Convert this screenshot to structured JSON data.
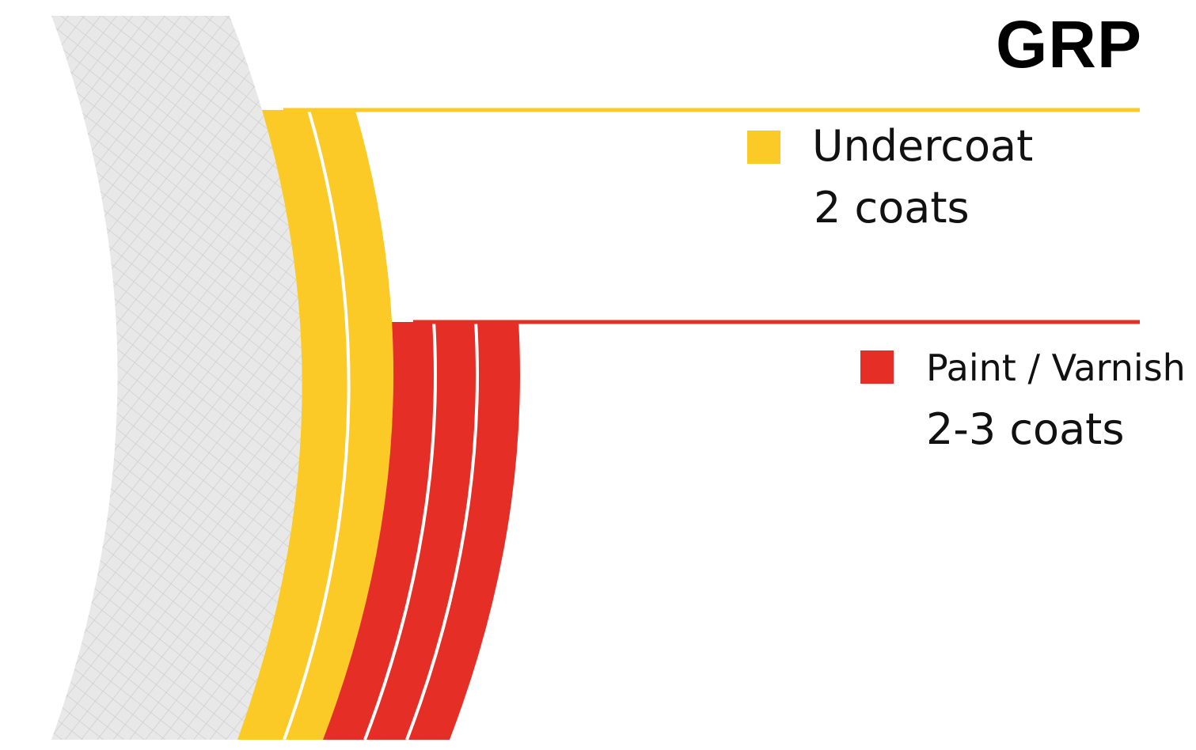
{
  "title": "GRP",
  "colors": {
    "undercoat": "#FBCA26",
    "paint": "#E52E26",
    "substrate_fill": "#E8E8E8",
    "substrate_mesh": "#CFCFCF",
    "background": "#FFFFFF"
  },
  "layers": [
    {
      "name": "Undercoat",
      "coats": "2 coats",
      "color_key": "undercoat",
      "coat_count": 2
    },
    {
      "name": "Paint / Varnish",
      "coats": "2-3 coats",
      "color_key": "paint",
      "coat_count": 3
    }
  ]
}
